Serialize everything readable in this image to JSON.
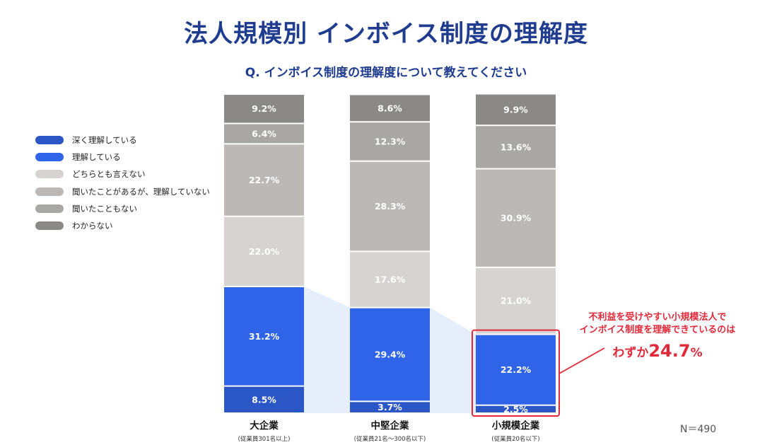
{
  "header": {
    "title": "法人規模別 インボイス制度の理解度",
    "subtitle": "Q. インボイス制度の理解度について教えてください"
  },
  "legend": {
    "items": [
      {
        "label": "深く理解している",
        "color": "#2a56c6"
      },
      {
        "label": "理解している",
        "color": "#2f63e8"
      },
      {
        "label": "どちらとも言えない",
        "color": "#d6d3d2"
      },
      {
        "label": "聞いたことがあるが、理解していない",
        "color": "#bcb8b6"
      },
      {
        "label": "聞いたこともない",
        "color": "#a9a7a6"
      },
      {
        "label": "わからない",
        "color": "#8a8988"
      }
    ]
  },
  "chart_data": {
    "type": "bar",
    "stacked": true,
    "percent": true,
    "categories": [
      "大企業",
      "中堅企業",
      "小規模企業"
    ],
    "category_notes": [
      "(従業員301名以上)",
      "(従業員21名〜300名以下)",
      "(従業員20名以下)"
    ],
    "series": [
      {
        "name": "深く理解している",
        "values": [
          8.5,
          3.7,
          2.5
        ],
        "color": "#2a56c6"
      },
      {
        "name": "理解している",
        "values": [
          31.2,
          29.4,
          22.2
        ],
        "color": "#2f63e8"
      },
      {
        "name": "どちらとも言えない",
        "values": [
          22.0,
          17.6,
          21.0
        ],
        "color": "#d6d3d2"
      },
      {
        "name": "聞いたことがあるが、理解していない",
        "values": [
          22.7,
          28.3,
          30.9
        ],
        "color": "#bcb8b6"
      },
      {
        "name": "聞いたこともない",
        "values": [
          6.4,
          12.3,
          13.6
        ],
        "color": "#a9a7a6"
      },
      {
        "name": "わからない",
        "values": [
          9.2,
          8.6,
          9.9
        ],
        "color": "#8a8988"
      }
    ],
    "ylim": [
      0,
      100
    ],
    "legend_position": "left"
  },
  "callout": {
    "line1": "不利益を受けやすい小規模法人で",
    "line2": "インボイス制度を理解できているのは",
    "prefix": "わずか",
    "value": "24.7",
    "unit": "%"
  },
  "sample": "N＝490"
}
